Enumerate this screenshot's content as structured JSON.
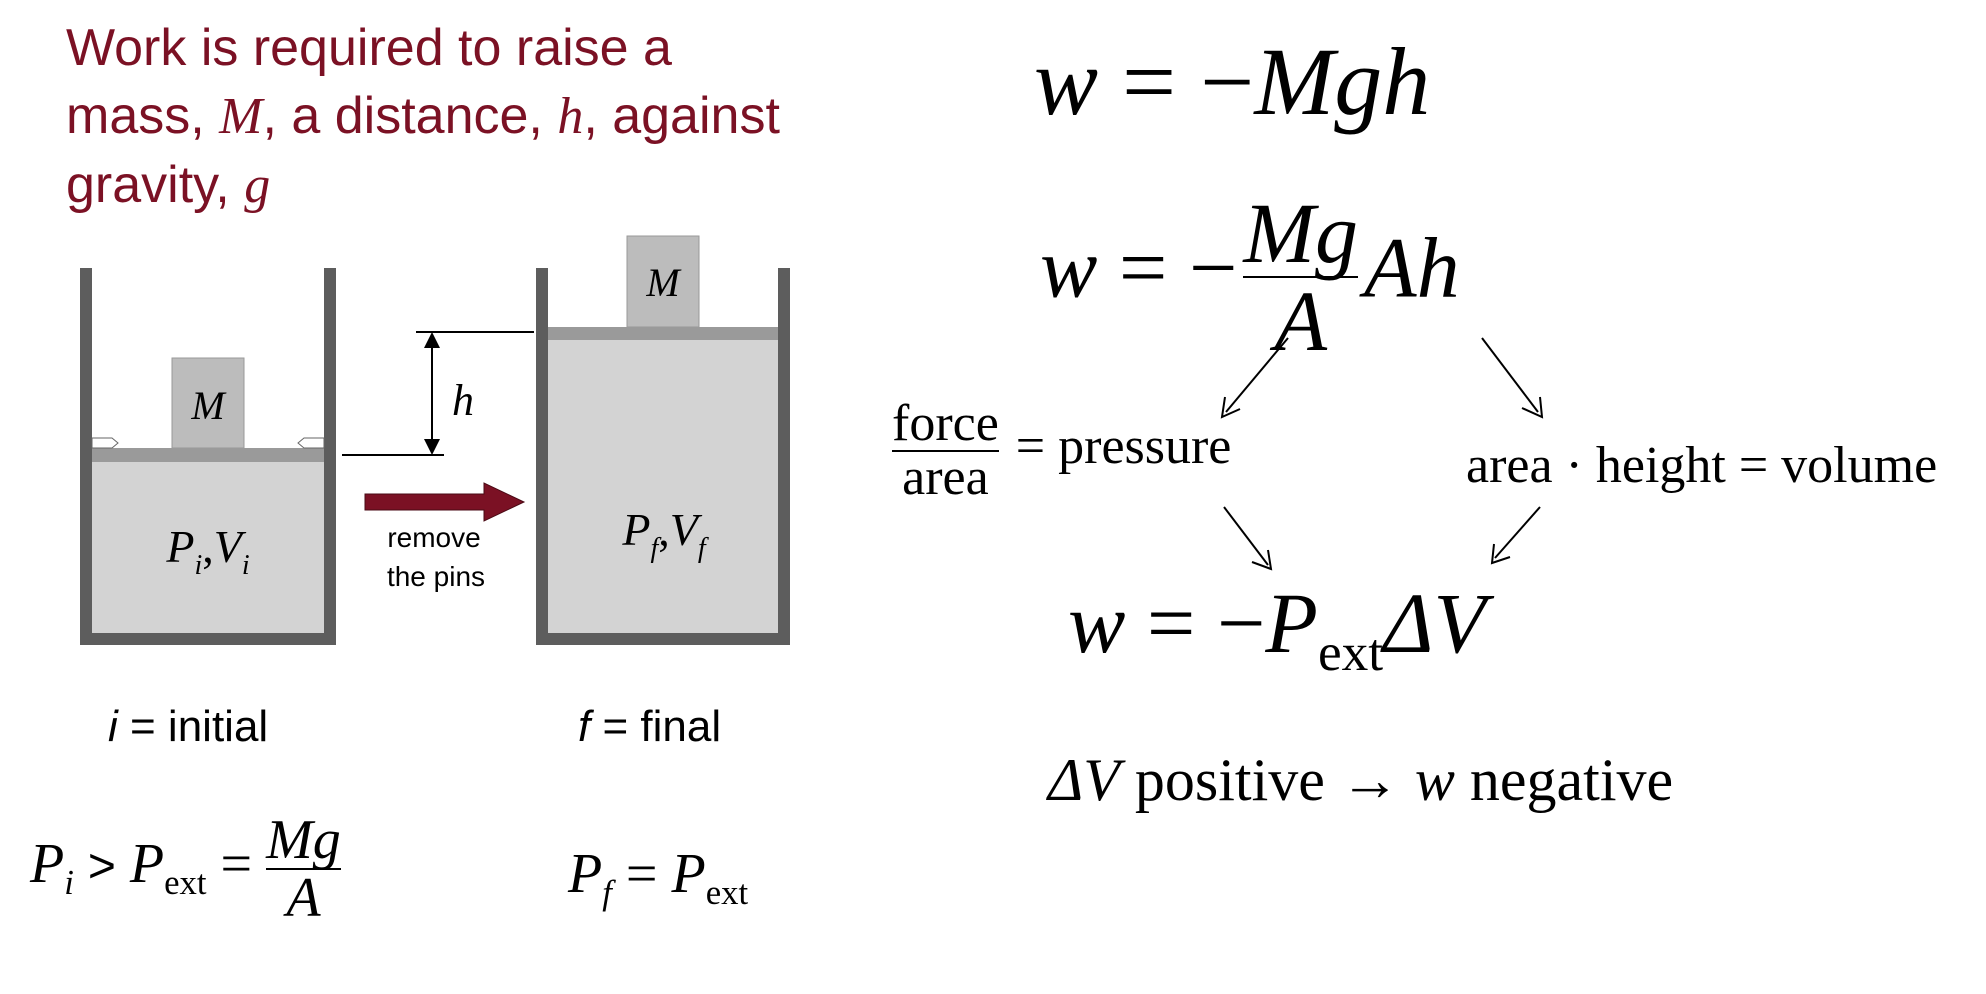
{
  "title": {
    "part1": "Work is required to raise a mass, ",
    "mass_symbol": "M",
    "part2": ", a distance, ",
    "distance_symbol": "h",
    "part3": ", against gravity, ",
    "gravity_symbol": "g"
  },
  "diagram": {
    "mass_label_initial": "M",
    "mass_label_final": "M",
    "height_label": "h",
    "state_initial": {
      "P": "P",
      "P_sub": "i",
      "V": "V",
      "V_sub": "i"
    },
    "state_final": {
      "P": "P",
      "P_sub": "f",
      "V": "V",
      "V_sub": "f"
    },
    "arrow_label_line1": "remove",
    "arrow_label_line2": "the pins",
    "initial_caption_var": "i",
    "initial_caption_text": " = initial",
    "final_caption_var": "f",
    "final_caption_text": " = final",
    "colors": {
      "wall": "#5d5d5d",
      "gas": "#d3d3d3",
      "piston": "#9a9a9a",
      "mass": "#bcbcbc",
      "arrow": "#7b1124"
    }
  },
  "conditions": {
    "initial": {
      "P": "P",
      "P_sub": "i",
      "gt": ">",
      "P_ext": "P",
      "P_ext_sub": "ext",
      "eq": "=",
      "num": "Mg",
      "den": "A"
    },
    "final": {
      "P": "P",
      "P_sub": "f",
      "eq": "=",
      "P_ext": "P",
      "P_ext_sub": "ext"
    }
  },
  "equations": {
    "eq1": {
      "w": "w",
      "rhs": " = −",
      "Mgh": "Mgh"
    },
    "eq2": {
      "w": "w",
      "rhs": " = −",
      "num": "Mg",
      "den": "A",
      "Ah": "Ah"
    },
    "force_area": {
      "num": "force",
      "den": "area",
      "rhs": "= pressure"
    },
    "area_height": "area · height = volume",
    "eq3": {
      "w": "w",
      "rhs": " = −",
      "P": "P",
      "P_sub": "ext",
      "dV": "ΔV"
    },
    "conclusion": {
      "dV": "ΔV",
      "positive": " positive ",
      "arrow": "→",
      "w": " w",
      "negative": " negative"
    }
  }
}
